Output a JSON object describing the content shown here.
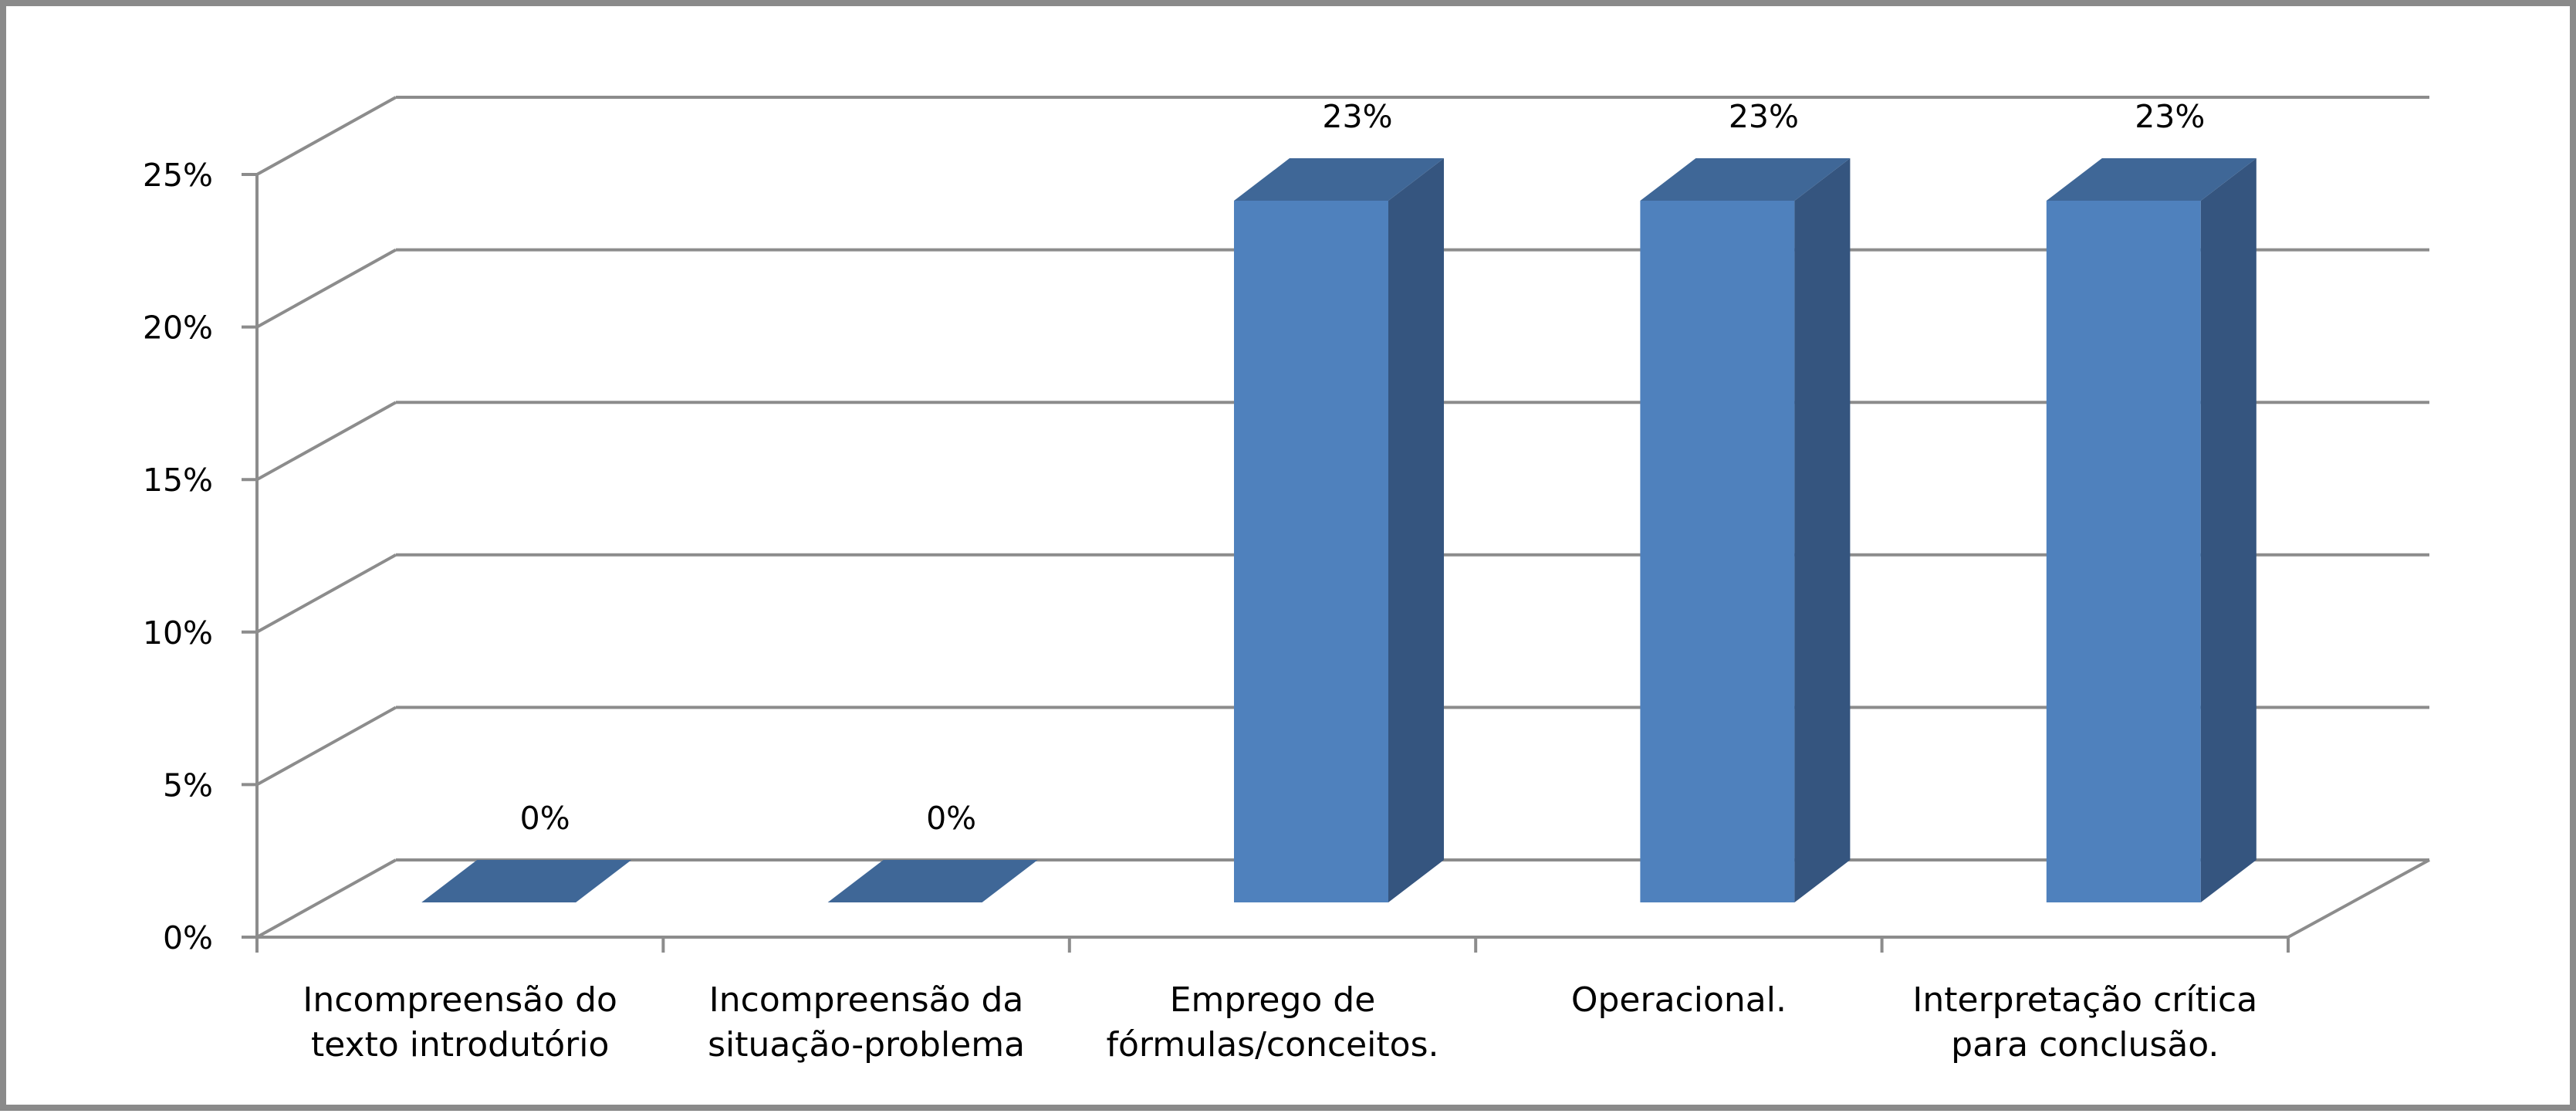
{
  "chart_data": {
    "type": "bar",
    "title": "",
    "xlabel": "",
    "ylabel": "",
    "categories": [
      [
        "Incompreensão do",
        "texto introdutório"
      ],
      [
        "Incompreensão da",
        "situação-problema"
      ],
      [
        "Emprego de",
        "fórmulas/conceitos."
      ],
      [
        "Operacional."
      ],
      [
        "Interpretação crítica",
        "para conclusão."
      ]
    ],
    "values": [
      0,
      0,
      23,
      23,
      23
    ],
    "data_labels": [
      "0%",
      "0%",
      "23%",
      "23%",
      "23%"
    ],
    "y_ticks": [
      "0%",
      "5%",
      "10%",
      "15%",
      "20%",
      "25%"
    ],
    "ylim": [
      0,
      25
    ],
    "grid": true,
    "legend": "none",
    "colors": {
      "bar_front": "#4F81BD",
      "bar_side": "#35557F",
      "bar_top": "#3F6797",
      "grid": "#8C8C8C",
      "frame": "#8A8A8A"
    }
  }
}
